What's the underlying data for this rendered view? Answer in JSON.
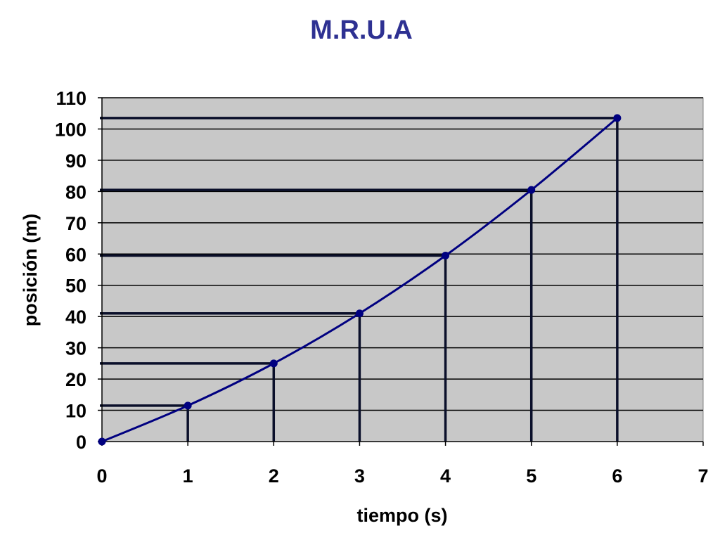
{
  "colors": {
    "title": "#2E3192",
    "plot_background": "#C8C8C8",
    "grid": "#000000",
    "series_line": "#000080",
    "drop_lines": "#0A0F2A",
    "axis": "#000000"
  },
  "chart_data": {
    "type": "scatter",
    "title": "M.R.U.A",
    "xlabel": "tiempo (s)",
    "ylabel": "posición (m)",
    "xlim": [
      0,
      7
    ],
    "ylim": [
      0,
      110
    ],
    "x_ticks": [
      "0",
      "1",
      "2",
      "3",
      "4",
      "5",
      "6",
      "7"
    ],
    "y_ticks": [
      "0",
      "10",
      "20",
      "30",
      "40",
      "50",
      "60",
      "70",
      "80",
      "90",
      "100",
      "110"
    ],
    "grid": "horizontal",
    "legend": "none",
    "smooth_line": true,
    "reference_lines": "horizontal and vertical lines from each data point to both axes",
    "series": [
      {
        "x": [
          0,
          1,
          2,
          3,
          4,
          5,
          6
        ],
        "y": [
          0,
          11.5,
          25,
          41,
          59.5,
          80.5,
          103.5
        ]
      }
    ]
  }
}
